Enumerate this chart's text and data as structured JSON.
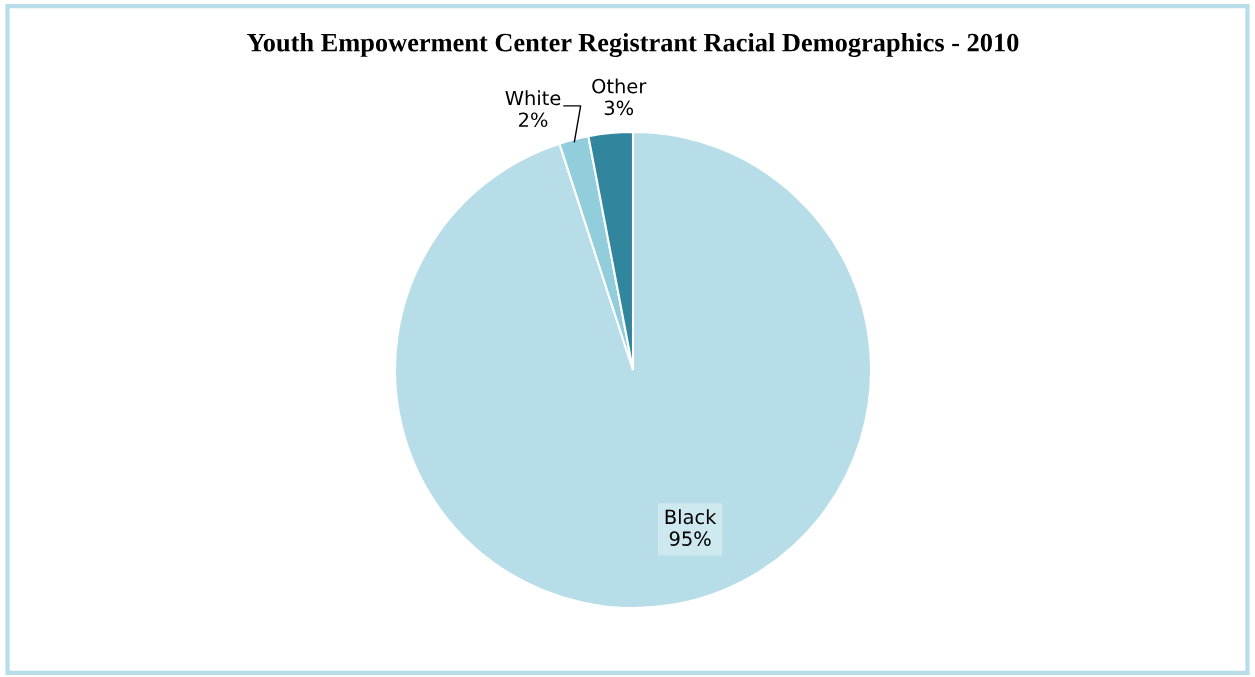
{
  "chart_data": {
    "type": "pie",
    "title": "Youth Empowerment Center Registrant Racial Demographics - 2010",
    "categories": [
      "Black",
      "White",
      "Other"
    ],
    "values": [
      95,
      2,
      3
    ],
    "colors": [
      "#b7dde8",
      "#92cddc",
      "#31859c"
    ],
    "value_labels": [
      "95%",
      "2%",
      "3%"
    ],
    "legend": false
  }
}
